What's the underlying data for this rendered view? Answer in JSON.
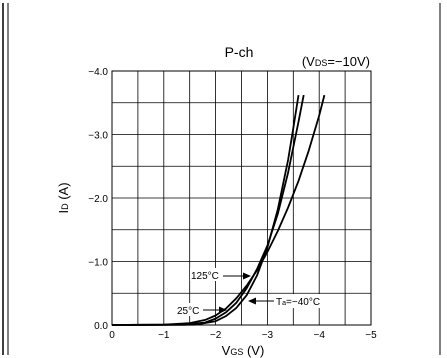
{
  "chart_data": {
    "type": "line",
    "title": "P-ch",
    "condition": "(VDS=−10V)",
    "condition_parts": {
      "open": "(V",
      "sub": "DS",
      "rest": "=−10V)"
    },
    "xlabel": {
      "main": "V",
      "sub": "GS",
      "unit": " (V)"
    },
    "ylabel": {
      "main": "I",
      "sub": "D",
      "unit": " (A)"
    },
    "x_ticks": [
      {
        "value": 0,
        "label": "0"
      },
      {
        "value": -1,
        "label": "−1"
      },
      {
        "value": -2,
        "label": "−2"
      },
      {
        "value": -3,
        "label": "−3"
      },
      {
        "value": -4,
        "label": "−4"
      },
      {
        "value": -5,
        "label": "−5"
      }
    ],
    "y_ticks": [
      {
        "value": 0,
        "label": "0.0"
      },
      {
        "value": -1,
        "label": "−1.0"
      },
      {
        "value": -2,
        "label": "−2.0"
      },
      {
        "value": -3,
        "label": "−3.0"
      },
      {
        "value": -4,
        "label": "−4.0"
      }
    ],
    "xlim": [
      0,
      -5
    ],
    "ylim": [
      0,
      -4
    ],
    "grid": true,
    "series": [
      {
        "name": "125°C",
        "x": [
          0,
          -1.0,
          -1.5,
          -1.8,
          -2.0,
          -2.2,
          -2.4,
          -2.6,
          -2.8,
          -3.0,
          -3.2,
          -3.4,
          -3.6,
          -3.8,
          -4.0,
          -4.1
        ],
        "y": [
          0,
          -0.005,
          -0.03,
          -0.08,
          -0.15,
          -0.26,
          -0.42,
          -0.62,
          -0.86,
          -1.15,
          -1.48,
          -1.85,
          -2.27,
          -2.75,
          -3.3,
          -3.62
        ]
      },
      {
        "name": "25°C",
        "x": [
          0,
          -1.4,
          -1.8,
          -2.0,
          -2.2,
          -2.4,
          -2.6,
          -2.8,
          -3.0,
          -3.2,
          -3.4,
          -3.6,
          -3.7
        ],
        "y": [
          0,
          -0.005,
          -0.04,
          -0.1,
          -0.2,
          -0.35,
          -0.58,
          -0.88,
          -1.25,
          -1.75,
          -2.4,
          -3.2,
          -3.62
        ]
      },
      {
        "name": "Ta=−40°C",
        "x": [
          0,
          -1.6,
          -2.0,
          -2.2,
          -2.4,
          -2.6,
          -2.8,
          -3.0,
          -3.2,
          -3.4,
          -3.5,
          -3.6
        ],
        "y": [
          0,
          -0.005,
          -0.06,
          -0.14,
          -0.27,
          -0.47,
          -0.78,
          -1.22,
          -1.82,
          -2.6,
          -3.1,
          -3.62
        ]
      }
    ],
    "annotations": [
      {
        "text": "125°C",
        "series": 0
      },
      {
        "text": "25°C",
        "series": 1
      },
      {
        "text_main": "T",
        "text_sub": "a",
        "text_rest": "=−40°C",
        "series": 2
      }
    ]
  }
}
